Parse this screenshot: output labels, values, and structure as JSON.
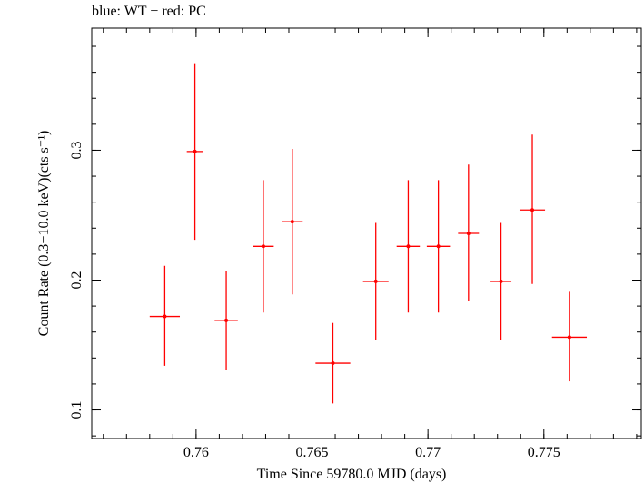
{
  "chart_data": {
    "type": "scatter",
    "title": "blue: WT − red: PC",
    "xlabel": "Time Since 59780.0 MJD (days)",
    "ylabel": "Count Rate (0.3−10.0 keV)(cts s⁻¹)",
    "xlim": [
      0.7555,
      0.7792
    ],
    "ylim": [
      0.078,
      0.394
    ],
    "xticks": [
      {
        "value": 0.76,
        "label": "0.76"
      },
      {
        "value": 0.765,
        "label": "0.765"
      },
      {
        "value": 0.77,
        "label": "0.77"
      },
      {
        "value": 0.775,
        "label": "0.775"
      }
    ],
    "yticks": [
      {
        "value": 0.1,
        "label": "0.1"
      },
      {
        "value": 0.2,
        "label": "0.2"
      },
      {
        "value": 0.3,
        "label": "0.3"
      }
    ],
    "grid": false,
    "series": [
      {
        "name": "PC",
        "color": "#ff0000",
        "points": [
          {
            "x": 0.75865,
            "xerr": 0.00065,
            "y": 0.172,
            "ylo": 0.134,
            "yhi": 0.211
          },
          {
            "x": 0.75995,
            "xerr": 0.00035,
            "y": 0.299,
            "ylo": 0.231,
            "yhi": 0.367
          },
          {
            "x": 0.7613,
            "xerr": 0.0005,
            "y": 0.169,
            "ylo": 0.131,
            "yhi": 0.207
          },
          {
            "x": 0.7629,
            "xerr": 0.00045,
            "y": 0.226,
            "ylo": 0.175,
            "yhi": 0.277
          },
          {
            "x": 0.76415,
            "xerr": 0.00045,
            "y": 0.245,
            "ylo": 0.189,
            "yhi": 0.301
          },
          {
            "x": 0.7659,
            "xerr": 0.00075,
            "y": 0.136,
            "ylo": 0.105,
            "yhi": 0.167
          },
          {
            "x": 0.76775,
            "xerr": 0.00055,
            "y": 0.199,
            "ylo": 0.154,
            "yhi": 0.244
          },
          {
            "x": 0.76915,
            "xerr": 0.0005,
            "y": 0.226,
            "ylo": 0.175,
            "yhi": 0.277
          },
          {
            "x": 0.77045,
            "xerr": 0.0005,
            "y": 0.226,
            "ylo": 0.175,
            "yhi": 0.277
          },
          {
            "x": 0.77175,
            "xerr": 0.00045,
            "y": 0.236,
            "ylo": 0.184,
            "yhi": 0.289
          },
          {
            "x": 0.77315,
            "xerr": 0.00045,
            "y": 0.199,
            "ylo": 0.154,
            "yhi": 0.244
          },
          {
            "x": 0.7745,
            "xerr": 0.00055,
            "y": 0.254,
            "ylo": 0.197,
            "yhi": 0.312
          },
          {
            "x": 0.7761,
            "xerr": 0.00075,
            "y": 0.156,
            "ylo": 0.122,
            "yhi": 0.191
          }
        ]
      }
    ]
  }
}
